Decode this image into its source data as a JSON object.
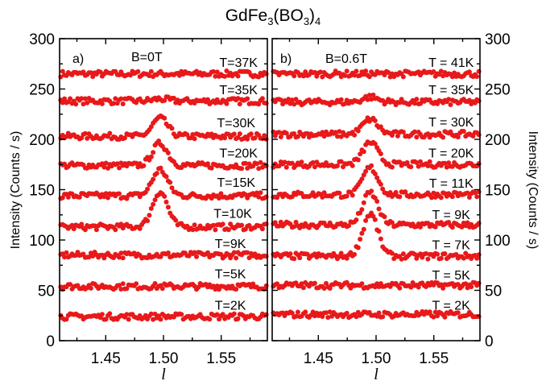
{
  "title": {
    "main": "GdFe",
    "sub1": "3",
    "mid": "(BO",
    "sub2": "3",
    "close": ")",
    "sub3": "4"
  },
  "point_color": "#e8191a",
  "chart_data": [
    {
      "type": "scatter",
      "panel": "a)",
      "field": "B=0T",
      "xlabel": "l",
      "ylabel": "Intensity (Counts / s)",
      "ylabel_side": "left",
      "xlim": [
        1.41,
        1.59
      ],
      "ylim": [
        0,
        300
      ],
      "xticks": [
        "1.45",
        "1.50",
        "1.55"
      ],
      "yticks": [
        "0",
        "50",
        "100",
        "150",
        "200",
        "250",
        "300"
      ],
      "series": [
        {
          "name": "T=37K",
          "baseline": 265,
          "peak": 0,
          "label_x": 1.565,
          "label_y": 272
        },
        {
          "name": "T=35K",
          "baseline": 238,
          "peak": 2,
          "label_x": 1.565,
          "label_y": 245
        },
        {
          "name": "T=30K",
          "baseline": 203,
          "peak": 18,
          "label_x": 1.563,
          "label_y": 212
        },
        {
          "name": "T=20K",
          "baseline": 174,
          "peak": 22,
          "label_x": 1.565,
          "label_y": 182
        },
        {
          "name": "T=15K",
          "baseline": 144,
          "peak": 26,
          "label_x": 1.563,
          "label_y": 153
        },
        {
          "name": "T=10K",
          "baseline": 113,
          "peak": 35,
          "label_x": 1.56,
          "label_y": 122
        },
        {
          "name": "T=9K",
          "baseline": 85,
          "peak": 0,
          "label_x": 1.558,
          "label_y": 92
        },
        {
          "name": "T=5K",
          "baseline": 54,
          "peak": 0,
          "label_x": 1.558,
          "label_y": 62
        },
        {
          "name": "T=2K",
          "baseline": 24,
          "peak": 0,
          "label_x": 1.558,
          "label_y": 31
        }
      ]
    },
    {
      "type": "scatter",
      "panel": "b)",
      "field": "B=0.6T",
      "xlabel": "l",
      "ylabel": "Intensity (Counts / s)",
      "ylabel_side": "right",
      "xlim": [
        1.41,
        1.59
      ],
      "ylim": [
        0,
        300
      ],
      "xticks": [
        "1.45",
        "1.50",
        "1.55"
      ],
      "yticks": [
        "0",
        "50",
        "100",
        "150",
        "200",
        "250",
        "300"
      ],
      "series": [
        {
          "name": "T = 41K",
          "baseline": 265,
          "peak": 0,
          "label_x": 1.565,
          "label_y": 272
        },
        {
          "name": "T = 35K",
          "baseline": 237,
          "peak": 5,
          "label_x": 1.565,
          "label_y": 245
        },
        {
          "name": "T = 30K",
          "baseline": 205,
          "peak": 15,
          "label_x": 1.565,
          "label_y": 213
        },
        {
          "name": "T = 20K",
          "baseline": 175,
          "peak": 22,
          "label_x": 1.565,
          "label_y": 182
        },
        {
          "name": "T = 11K",
          "baseline": 145,
          "peak": 27,
          "label_x": 1.565,
          "label_y": 152
        },
        {
          "name": "T = 9K",
          "baseline": 115,
          "peak": 32,
          "label_x": 1.565,
          "label_y": 121
        },
        {
          "name": "T = 7K",
          "baseline": 84,
          "peak": 42,
          "label_x": 1.565,
          "label_y": 91
        },
        {
          "name": "T = 5K",
          "baseline": 55,
          "peak": 0,
          "label_x": 1.565,
          "label_y": 61
        },
        {
          "name": "T = 2K",
          "baseline": 26,
          "peak": 0,
          "label_x": 1.565,
          "label_y": 31
        }
      ]
    }
  ]
}
